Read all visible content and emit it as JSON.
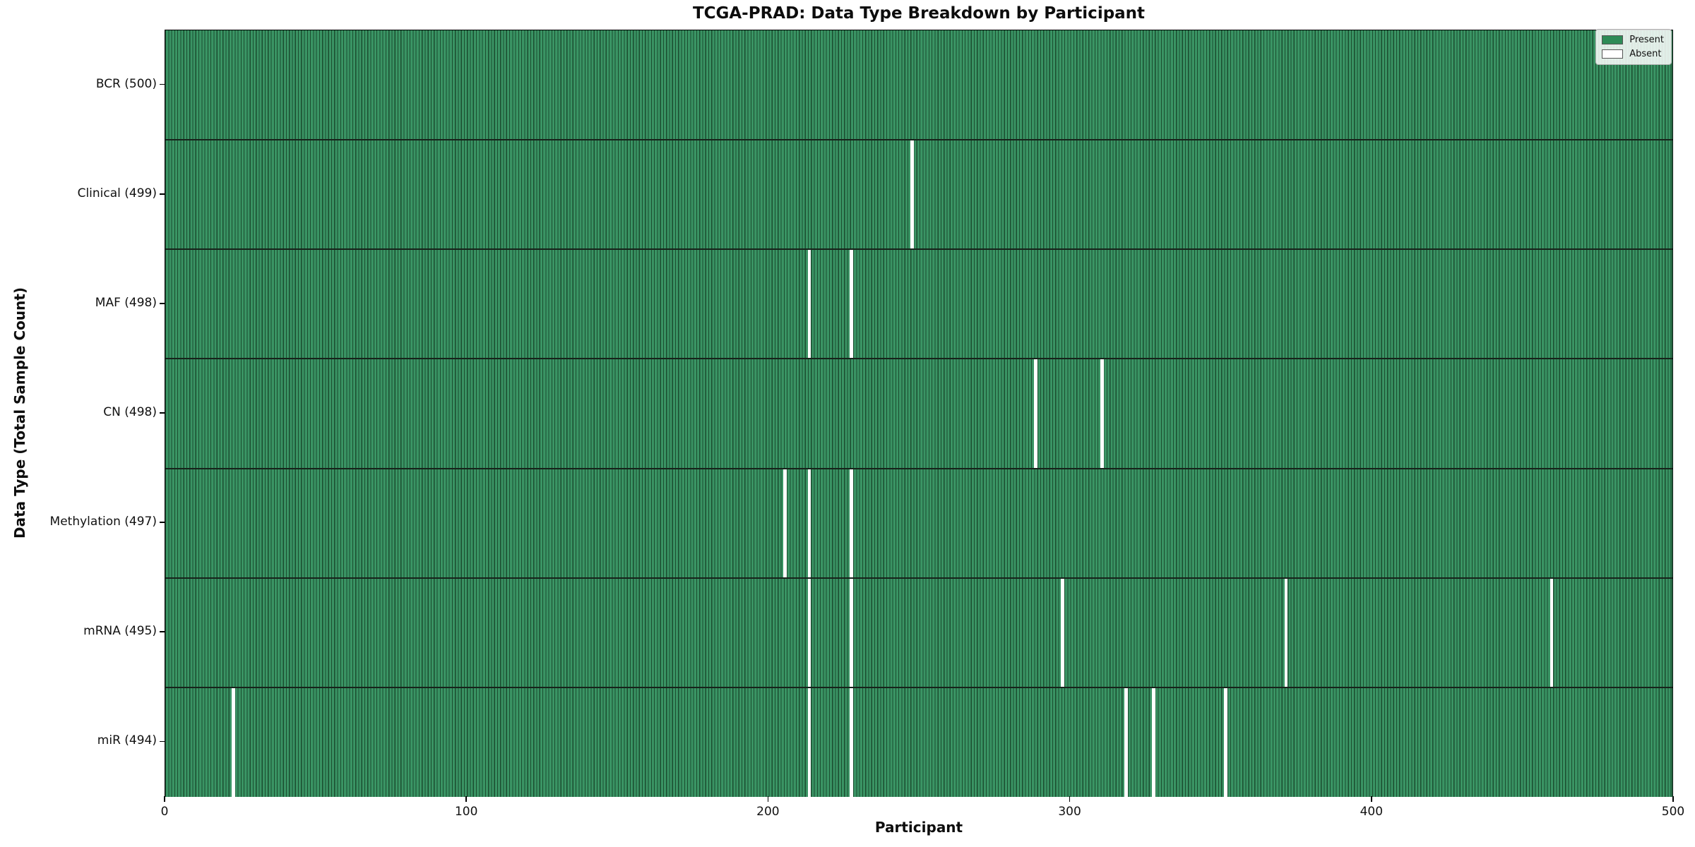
{
  "title": "TCGA-PRAD: Data Type Breakdown by Participant",
  "colors": {
    "present": "#2e8b57",
    "absent": "#ffffff",
    "bar_fill": "#3a9464",
    "bar_edge": "#1b4d2f",
    "row_separator": "#17231b",
    "axis": "#000000"
  },
  "chart_data": {
    "type": "heatmap",
    "title": "TCGA-PRAD: Data Type Breakdown by Participant",
    "xlabel": "Participant",
    "ylabel": "Data Type (Total Sample Count)",
    "xlim": [
      0,
      500
    ],
    "x_ticks": [
      0,
      100,
      200,
      300,
      400,
      500
    ],
    "n_participants": 500,
    "grid": false,
    "legend_position": "upper right",
    "legend": [
      {
        "label": "Present",
        "color": "#2e8b57"
      },
      {
        "label": "Absent",
        "color": "#ffffff"
      }
    ],
    "rows": [
      {
        "label": "BCR (500)",
        "data_type": "BCR",
        "total": 500,
        "absent_participants": []
      },
      {
        "label": "Clinical (499)",
        "data_type": "Clinical",
        "total": 499,
        "absent_participants": [
          247
        ]
      },
      {
        "label": "MAF (498)",
        "data_type": "MAF",
        "total": 498,
        "absent_participants": [
          213,
          227
        ]
      },
      {
        "label": "CN (498)",
        "data_type": "CN",
        "total": 498,
        "absent_participants": [
          288,
          310
        ]
      },
      {
        "label": "Methylation (497)",
        "data_type": "Methylation",
        "total": 497,
        "absent_participants": [
          205,
          213,
          227
        ]
      },
      {
        "label": "mRNA (495)",
        "data_type": "mRNA",
        "total": 495,
        "absent_participants": [
          213,
          227,
          297,
          371,
          459
        ]
      },
      {
        "label": "miR (494)",
        "data_type": "miR",
        "total": 494,
        "absent_participants": [
          22,
          213,
          227,
          318,
          327,
          351
        ]
      }
    ]
  }
}
